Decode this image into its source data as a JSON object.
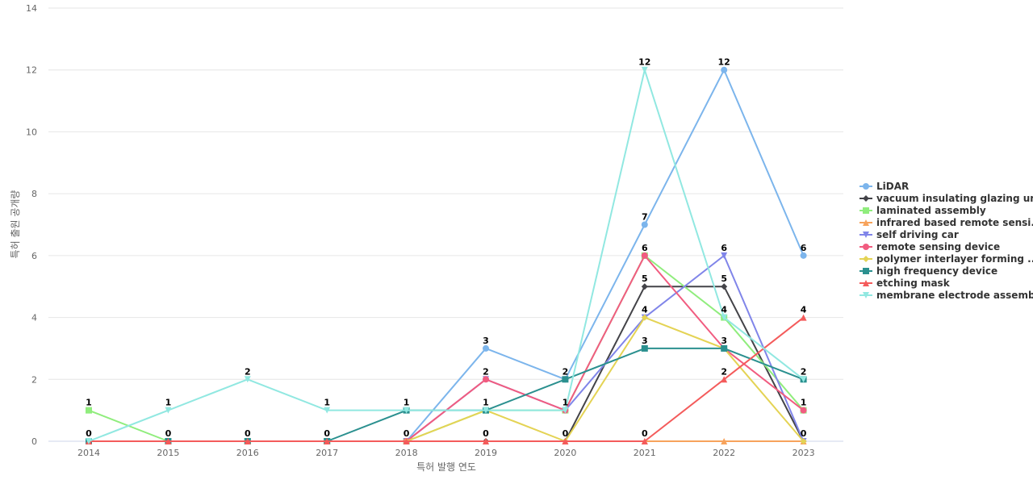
{
  "chart_data": {
    "type": "line",
    "title": "",
    "xlabel": "특허 발행 연도",
    "ylabel": "특허 출원 공개량",
    "ylim": [
      0,
      14
    ],
    "yticks": [
      0,
      2,
      4,
      6,
      8,
      10,
      12,
      14
    ],
    "grid": true,
    "legend_position": "right",
    "categories": [
      "2014",
      "2015",
      "2016",
      "2017",
      "2018",
      "2019",
      "2020",
      "2021",
      "2022",
      "2023"
    ],
    "series": [
      {
        "name": "LiDAR",
        "color": "#7cb5ec",
        "marker": "circle",
        "values": [
          0,
          0,
          0,
          0,
          0,
          3,
          2,
          7,
          12,
          6
        ]
      },
      {
        "name": "vacuum insulating glazing unit",
        "color": "#434348",
        "marker": "diamond",
        "values": [
          0,
          0,
          0,
          0,
          0,
          0,
          0,
          5,
          5,
          0
        ]
      },
      {
        "name": "laminated assembly",
        "color": "#90ed7d",
        "marker": "square",
        "values": [
          1,
          0,
          0,
          0,
          0,
          1,
          1,
          6,
          4,
          1
        ]
      },
      {
        "name": "infrared based remote sensi...",
        "color": "#f7a35c",
        "marker": "triangle",
        "values": [
          0,
          0,
          0,
          0,
          0,
          0,
          0,
          0,
          0,
          0
        ]
      },
      {
        "name": "self driving car",
        "color": "#8085e9",
        "marker": "triangle-down",
        "values": [
          0,
          0,
          0,
          0,
          0,
          2,
          1,
          4,
          6,
          0
        ]
      },
      {
        "name": "remote sensing device",
        "color": "#f15c80",
        "marker": "circle",
        "values": [
          0,
          0,
          0,
          0,
          0,
          2,
          1,
          6,
          3,
          1
        ]
      },
      {
        "name": "polymer interlayer forming ...",
        "color": "#e4d354",
        "marker": "diamond",
        "values": [
          0,
          0,
          0,
          0,
          0,
          1,
          0,
          4,
          3,
          0
        ]
      },
      {
        "name": "high frequency device",
        "color": "#2b908f",
        "marker": "square",
        "values": [
          0,
          0,
          0,
          0,
          1,
          1,
          2,
          3,
          3,
          2
        ]
      },
      {
        "name": "etching mask",
        "color": "#f45b5b",
        "marker": "triangle",
        "values": [
          0,
          0,
          0,
          0,
          0,
          0,
          0,
          0,
          2,
          4
        ]
      },
      {
        "name": "membrane electrode assembly",
        "color": "#91e8e1",
        "marker": "triangle-down",
        "values": [
          0,
          1,
          2,
          1,
          1,
          1,
          1,
          12,
          4,
          2
        ]
      }
    ],
    "data_labels": [
      {
        "category": "2014",
        "value": 1
      },
      {
        "category": "2014",
        "value": 0
      },
      {
        "category": "2015",
        "value": 1
      },
      {
        "category": "2015",
        "value": 0
      },
      {
        "category": "2016",
        "value": 2
      },
      {
        "category": "2016",
        "value": 0
      },
      {
        "category": "2017",
        "value": 1
      },
      {
        "category": "2017",
        "value": 0
      },
      {
        "category": "2018",
        "value": 1
      },
      {
        "category": "2018",
        "value": 0
      },
      {
        "category": "2019",
        "value": 3
      },
      {
        "category": "2019",
        "value": 2
      },
      {
        "category": "2019",
        "value": 1
      },
      {
        "category": "2019",
        "value": 0
      },
      {
        "category": "2020",
        "value": 2
      },
      {
        "category": "2020",
        "value": 1
      },
      {
        "category": "2020",
        "value": 0
      },
      {
        "category": "2021",
        "value": 12
      },
      {
        "category": "2021",
        "value": 7
      },
      {
        "category": "2021",
        "value": 6
      },
      {
        "category": "2021",
        "value": 5
      },
      {
        "category": "2021",
        "value": 4
      },
      {
        "category": "2021",
        "value": 3
      },
      {
        "category": "2021",
        "value": 0
      },
      {
        "category": "2022",
        "value": 12
      },
      {
        "category": "2022",
        "value": 6
      },
      {
        "category": "2022",
        "value": 5
      },
      {
        "category": "2022",
        "value": 4
      },
      {
        "category": "2022",
        "value": 3
      },
      {
        "category": "2022",
        "value": 2
      },
      {
        "category": "2023",
        "value": 6
      },
      {
        "category": "2023",
        "value": 4
      },
      {
        "category": "2023",
        "value": 2
      },
      {
        "category": "2023",
        "value": 1
      },
      {
        "category": "2023",
        "value": 0
      }
    ]
  }
}
